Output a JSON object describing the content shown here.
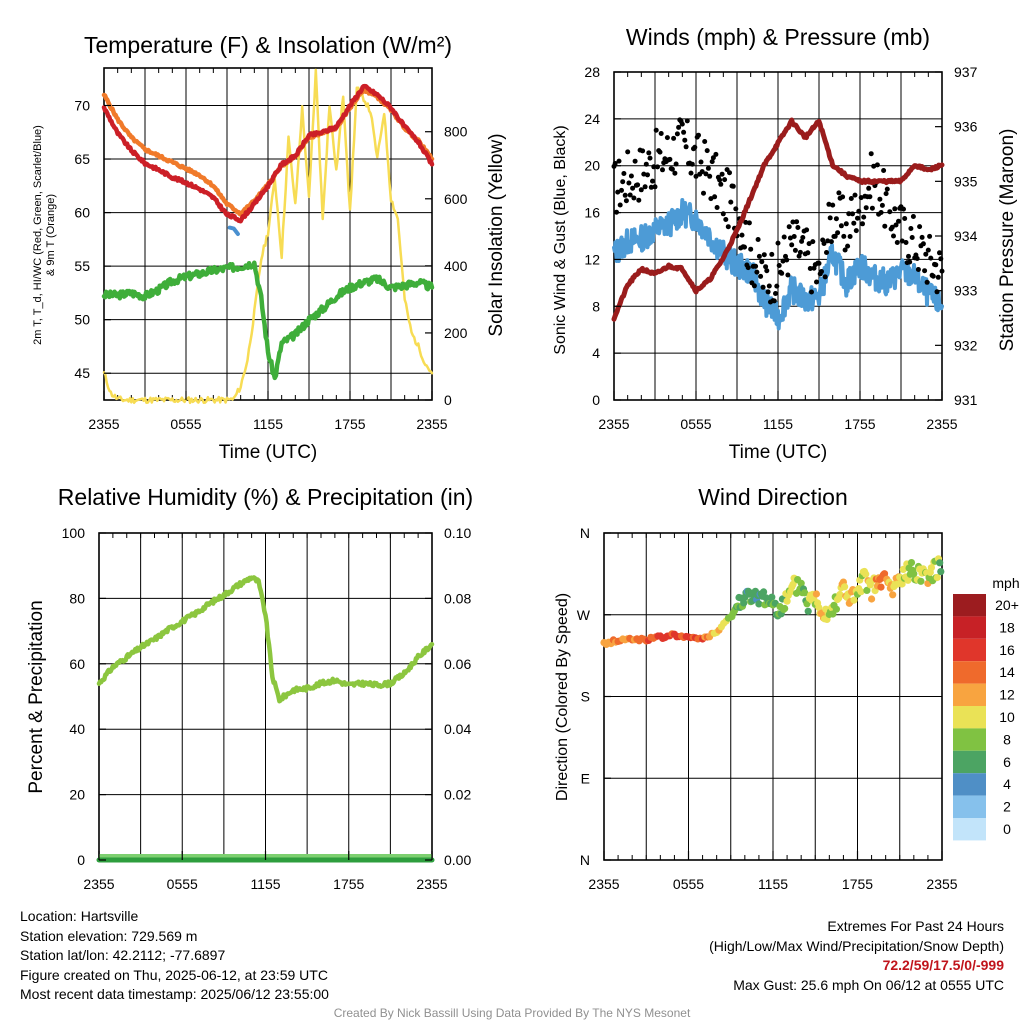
{
  "colors": {
    "temp": "#cc1f27",
    "temp9m": "#f07a2a",
    "dewpoint": "#3fae3a",
    "windchill": "#4a90d0",
    "insolation": "#f7dc54",
    "wind": "#4d9bd6",
    "gust": "#000000",
    "pressure": "#9a1c1c",
    "rh": "#8cc63f",
    "precip": "#2e9e3e",
    "precip_fill": "#7dd070"
  },
  "panels": {
    "temperature": {
      "title": "Temperature (F) & Insolation (W/m²)",
      "ylabel_line1": "2m T, T_d, HI/WC (Red, Green, Scarlet/Blue)",
      "ylabel_line2": "& 9m T (Orange)",
      "y2label": "Solar Insolation (Yellow)",
      "xlabel": "Time (UTC)"
    },
    "winds": {
      "title": "Winds (mph) & Pressure (mb)",
      "ylabel": "Sonic Wind & Gust (Blue, Black)",
      "y2label": "Station Pressure (Maroon)",
      "xlabel": "Time (UTC)"
    },
    "humidity": {
      "title": "Relative Humidity (%) & Precipitation (in)",
      "ylabel": "Percent & Precipitation"
    },
    "direction": {
      "title": "Wind Direction",
      "ylabel": "Direction (Colored By Speed)",
      "legend_title": "mph"
    }
  },
  "chart_data": [
    {
      "type": "line",
      "title": "Temperature (F) & Insolation (W/m²)",
      "xlabel": "Time (UTC)",
      "x_ticks": [
        "2355",
        "0555",
        "1155",
        "1755",
        "2355"
      ],
      "xlim": [
        0,
        24
      ],
      "ylim": [
        42.5,
        73.5
      ],
      "y_ticks": [
        45,
        50,
        55,
        60,
        65,
        70
      ],
      "y2lim": [
        0,
        990
      ],
      "y2_ticks": [
        0,
        200,
        400,
        600,
        800
      ],
      "series": [
        {
          "name": "2m T",
          "axis": "left",
          "x": [
            0,
            1,
            2,
            3,
            4,
            5,
            6,
            7,
            8,
            9,
            10,
            11,
            12,
            13,
            14,
            15,
            16,
            17,
            18,
            19,
            20,
            21,
            22,
            23,
            24
          ],
          "values": [
            69.8,
            67.4,
            65.8,
            64.6,
            64.0,
            63.3,
            62.8,
            62.2,
            61.4,
            59.8,
            59.3,
            60.8,
            62.5,
            64.5,
            65.3,
            67.2,
            67.5,
            68.0,
            70.0,
            71.8,
            71.0,
            69.8,
            68.0,
            66.6,
            64.5
          ]
        },
        {
          "name": "9m T",
          "axis": "left",
          "x": [
            0,
            1,
            2,
            3,
            4,
            5,
            6,
            7,
            8,
            9,
            10,
            11,
            12,
            13,
            14,
            15,
            16,
            17,
            18,
            19,
            20,
            21,
            22,
            23,
            24
          ],
          "values": [
            71.0,
            68.7,
            67.0,
            65.9,
            65.3,
            64.7,
            64.1,
            63.5,
            62.5,
            60.8,
            59.9,
            61.1,
            62.6,
            64.4,
            65.2,
            67.0,
            67.4,
            67.9,
            69.8,
            71.5,
            70.8,
            69.6,
            67.9,
            66.7,
            65.0
          ]
        },
        {
          "name": "Dewpoint",
          "axis": "left",
          "x": [
            0,
            1,
            2,
            3,
            4,
            5,
            6,
            7,
            8,
            9,
            10,
            11,
            11.5,
            12,
            12.5,
            13,
            14,
            15,
            16,
            17,
            18,
            19,
            20,
            21,
            22,
            23,
            24
          ],
          "values": [
            52.3,
            52.3,
            52.5,
            52.2,
            52.8,
            53.6,
            54.0,
            54.3,
            54.6,
            54.8,
            55.0,
            55.3,
            52.0,
            47.0,
            44.5,
            47.8,
            48.6,
            50.0,
            51.0,
            52.2,
            53.0,
            53.5,
            53.8,
            53.0,
            53.2,
            53.5,
            53.0
          ]
        },
        {
          "name": "Wind Chill",
          "axis": "left",
          "x": [
            9.2,
            9.5,
            9.8
          ],
          "values": [
            58.6,
            58.5,
            58.0
          ]
        },
        {
          "name": "Solar Insolation",
          "axis": "right",
          "x": [
            0,
            0.5,
            1,
            1.5,
            2,
            3,
            4,
            5,
            6,
            7,
            8,
            9,
            9.5,
            10,
            10.5,
            11,
            11.5,
            12,
            12.5,
            13,
            13.5,
            14,
            14.5,
            15,
            15.5,
            16,
            16.5,
            17,
            17.5,
            18,
            18.5,
            19,
            19.5,
            20,
            20.5,
            21,
            21.5,
            22,
            22.5,
            23,
            23.5,
            24
          ],
          "values": [
            80,
            20,
            3,
            0,
            0,
            0,
            0,
            0,
            0,
            0,
            0,
            0,
            3,
            40,
            120,
            260,
            420,
            500,
            660,
            430,
            780,
            580,
            870,
            600,
            980,
            540,
            880,
            680,
            910,
            560,
            930,
            900,
            860,
            720,
            860,
            600,
            540,
            300,
            200,
            160,
            110,
            80
          ]
        }
      ]
    },
    {
      "type": "line",
      "title": "Winds (mph) & Pressure (mb)",
      "xlabel": "Time (UTC)",
      "x_ticks": [
        "2355",
        "0555",
        "1155",
        "1755",
        "2355"
      ],
      "xlim": [
        0,
        24
      ],
      "ylim": [
        0,
        28
      ],
      "y_ticks": [
        0,
        4,
        8,
        12,
        16,
        20,
        24,
        28
      ],
      "y2lim": [
        931,
        937
      ],
      "y2_ticks": [
        931,
        932,
        933,
        934,
        935,
        936,
        937
      ],
      "series": [
        {
          "name": "Sonic Wind",
          "axis": "left",
          "x": [
            0,
            1,
            2,
            3,
            4,
            5,
            6,
            7,
            8,
            9,
            10,
            11,
            12,
            13,
            14,
            15,
            16,
            17,
            18,
            19,
            20,
            21,
            22,
            23,
            24
          ],
          "values": [
            12.5,
            13.5,
            13.8,
            14.5,
            15.0,
            16.0,
            15.5,
            14.0,
            12.5,
            11.5,
            11.0,
            8.5,
            7.0,
            9.5,
            8.5,
            8.8,
            12.5,
            10.0,
            11.5,
            10.5,
            10.0,
            11.0,
            10.5,
            9.0,
            8.0
          ]
        },
        {
          "name": "Gust",
          "axis": "left",
          "x": [
            0,
            1,
            2,
            3,
            4,
            5,
            6,
            7,
            8,
            9,
            10,
            11,
            12,
            13,
            14,
            15,
            16,
            17,
            18,
            19,
            20,
            21,
            22,
            23,
            24
          ],
          "values": [
            18.0,
            19.0,
            19.5,
            20.5,
            21.0,
            22.0,
            20.5,
            19.5,
            17.5,
            16.5,
            12.5,
            10.5,
            11.0,
            13.5,
            12.5,
            10.5,
            16.0,
            14.5,
            17.0,
            19.0,
            16.5,
            14.5,
            13.5,
            12.0,
            11.0
          ]
        },
        {
          "name": "Station Pressure",
          "axis": "right",
          "x": [
            0,
            1,
            2,
            3,
            4,
            5,
            6,
            7,
            8,
            9,
            10,
            11,
            12,
            13,
            14,
            15,
            16,
            17,
            18,
            19,
            20,
            21,
            22,
            23,
            24
          ],
          "values": [
            932.5,
            933.1,
            933.4,
            933.3,
            933.45,
            933.4,
            933.0,
            933.2,
            933.6,
            934.1,
            934.7,
            935.3,
            935.7,
            936.1,
            935.8,
            936.1,
            935.3,
            935.1,
            935.0,
            935.0,
            935.0,
            935.0,
            935.3,
            935.2,
            935.3
          ]
        }
      ]
    },
    {
      "type": "line",
      "title": "Relative Humidity (%) & Precipitation (in)",
      "x_ticks": [
        "2355",
        "0555",
        "1155",
        "1755",
        "2355"
      ],
      "xlim": [
        0,
        24
      ],
      "ylim": [
        0,
        100
      ],
      "y_ticks": [
        0,
        20,
        40,
        60,
        80,
        100
      ],
      "y2lim": [
        0,
        0.1
      ],
      "y2_ticks": [
        "0.00",
        "0.02",
        "0.04",
        "0.06",
        "0.08",
        "0.10"
      ],
      "series": [
        {
          "name": "Relative Humidity",
          "axis": "left",
          "x": [
            0,
            1,
            2,
            3,
            4,
            5,
            6,
            7,
            8,
            9,
            10,
            11,
            11.5,
            12,
            12.5,
            13,
            14,
            15,
            16,
            17,
            18,
            19,
            20,
            21,
            22,
            23,
            24
          ],
          "values": [
            54,
            59,
            62,
            65,
            67.5,
            70.5,
            73,
            75.5,
            78.5,
            81,
            84,
            86.5,
            85,
            75,
            56,
            49,
            52,
            52.5,
            54,
            55,
            53.5,
            54,
            53.5,
            54,
            57,
            62,
            66
          ]
        },
        {
          "name": "Precipitation",
          "axis": "right",
          "x": [
            0,
            24
          ],
          "values": [
            0,
            0
          ]
        }
      ]
    },
    {
      "type": "scatter",
      "title": "Wind Direction",
      "x_ticks": [
        "2355",
        "0555",
        "1155",
        "1755",
        "2355"
      ],
      "xlim": [
        0,
        24
      ],
      "ylim": [
        0,
        360
      ],
      "y_ticks": [
        "N",
        "E",
        "S",
        "W",
        "N"
      ],
      "series": [
        {
          "name": "Wind Direction",
          "x": [
            0,
            1,
            2,
            3,
            4,
            5,
            6,
            7,
            8,
            9,
            9.5,
            10,
            10.5,
            11,
            11.5,
            12,
            12.5,
            13,
            13.5,
            14,
            14.5,
            15,
            15.5,
            16,
            16.5,
            17,
            17.5,
            18,
            18.5,
            19,
            19.5,
            20,
            20.5,
            21,
            21.5,
            22,
            22.5,
            23,
            23.5,
            24
          ],
          "values": [
            238,
            242,
            243,
            243,
            245,
            248,
            244,
            244,
            250,
            268,
            280,
            295,
            283,
            290,
            288,
            282,
            278,
            285,
            300,
            302,
            282,
            289,
            275,
            272,
            287,
            300,
            287,
            292,
            310,
            298,
            306,
            308,
            296,
            310,
            315,
            320,
            316,
            314,
            320,
            322
          ],
          "speeds": [
            12,
            14,
            14,
            16,
            16,
            17,
            16,
            15,
            12,
            9,
            8,
            7,
            7,
            6,
            7,
            8,
            7,
            10,
            11,
            8,
            9,
            11,
            12,
            10,
            9,
            12,
            13,
            11,
            10,
            12,
            13,
            14,
            12,
            11,
            10,
            9,
            10,
            11,
            9,
            9
          ]
        }
      ],
      "legend": {
        "title": "mph",
        "labels": [
          "20+",
          "18",
          "16",
          "14",
          "12",
          "10",
          "8",
          "6",
          "4",
          "2",
          "0"
        ],
        "colors": [
          "#9c1c1f",
          "#c72126",
          "#e0362b",
          "#ef6a2c",
          "#f8a440",
          "#eae256",
          "#80c242",
          "#4ca463",
          "#4f8fc6",
          "#86c1ec",
          "#c2e4fa"
        ]
      }
    }
  ],
  "info_left": [
    "Location: Hartsville",
    "Station elevation: 729.569 m",
    "Station lat/lon: 42.2112; -77.6897",
    "Figure created on Thu, 2025-06-12, at 23:59 UTC",
    "Most recent data timestamp: 2025/06/12 23:55:00"
  ],
  "extremes": {
    "title": "Extremes For Past 24 Hours",
    "subtitle": "(High/Low/Max Wind/Precipitation/Snow Depth)",
    "values": "72.2/59/17.5/0/-999",
    "gust": "Max Gust: 25.6 mph On 06/12 at 0555 UTC"
  },
  "credit": "Created By Nick Bassill Using Data Provided By The NYS Mesonet"
}
